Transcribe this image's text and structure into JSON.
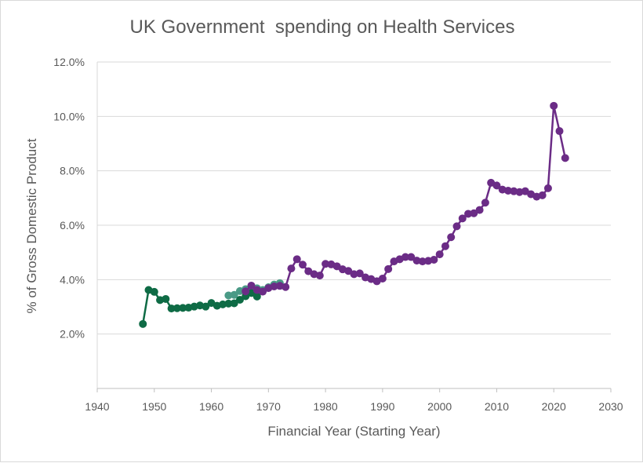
{
  "chart_data": {
    "type": "line",
    "title": "UK Government  spending on Health Services",
    "xlabel": "Financial Year (Starting Year)",
    "ylabel": "% of Gross Domestic Product",
    "xlim": [
      1940,
      2030
    ],
    "ylim": [
      0,
      12
    ],
    "x_ticks": [
      "1940",
      "1950",
      "1960",
      "1970",
      "1980",
      "1990",
      "2000",
      "2010",
      "2020",
      "2030"
    ],
    "y_ticks": [
      "",
      "2.0%",
      "4.0%",
      "6.0%",
      "8.0%",
      "10.0%",
      "12.0%"
    ],
    "grid": "horizontal",
    "legend": "none",
    "series": [
      {
        "color": "#4a9a86",
        "x": [
          1963,
          1964,
          1965,
          1966,
          1967,
          1968,
          1969,
          1970,
          1971,
          1972
        ],
        "y": [
          3.42,
          3.44,
          3.58,
          3.65,
          3.73,
          3.68,
          3.62,
          3.72,
          3.82,
          3.87
        ]
      },
      {
        "color": "#0e6b45",
        "x": [
          1948,
          1949,
          1950,
          1951,
          1952,
          1953,
          1954,
          1955,
          1956,
          1957,
          1958,
          1959,
          1960,
          1961,
          1962,
          1963,
          1964,
          1965,
          1966,
          1967,
          1968
        ],
        "y": [
          2.37,
          3.62,
          3.55,
          3.25,
          3.29,
          2.94,
          2.95,
          2.96,
          2.97,
          3.01,
          3.05,
          3.01,
          3.14,
          3.04,
          3.09,
          3.12,
          3.13,
          3.26,
          3.39,
          3.51,
          3.38
        ]
      },
      {
        "color": "#6b2c86",
        "x": [
          1966,
          1967,
          1968,
          1969,
          1970,
          1971,
          1972,
          1973,
          1974,
          1975,
          1976,
          1977,
          1978,
          1979,
          1980,
          1981,
          1982,
          1983,
          1984,
          1985,
          1986,
          1987,
          1988,
          1989,
          1990,
          1991,
          1992,
          1993,
          1994,
          1995,
          1996,
          1997,
          1998,
          1999,
          2000,
          2001,
          2002,
          2003,
          2004,
          2005,
          2006,
          2007,
          2008,
          2009,
          2010,
          2011,
          2012,
          2013,
          2014,
          2015,
          2016,
          2017,
          2018,
          2019,
          2020,
          2021,
          2022
        ],
        "y": [
          3.57,
          3.78,
          3.62,
          3.56,
          3.69,
          3.75,
          3.77,
          3.73,
          4.41,
          4.75,
          4.55,
          4.31,
          4.2,
          4.15,
          4.58,
          4.56,
          4.49,
          4.38,
          4.32,
          4.2,
          4.23,
          4.08,
          4.02,
          3.94,
          4.04,
          4.39,
          4.67,
          4.75,
          4.83,
          4.83,
          4.7,
          4.67,
          4.69,
          4.73,
          4.93,
          5.23,
          5.56,
          5.96,
          6.25,
          6.42,
          6.44,
          6.56,
          6.83,
          7.56,
          7.46,
          7.31,
          7.27,
          7.25,
          7.22,
          7.25,
          7.14,
          7.05,
          7.1,
          7.36,
          10.39,
          9.46,
          8.47
        ]
      }
    ]
  }
}
